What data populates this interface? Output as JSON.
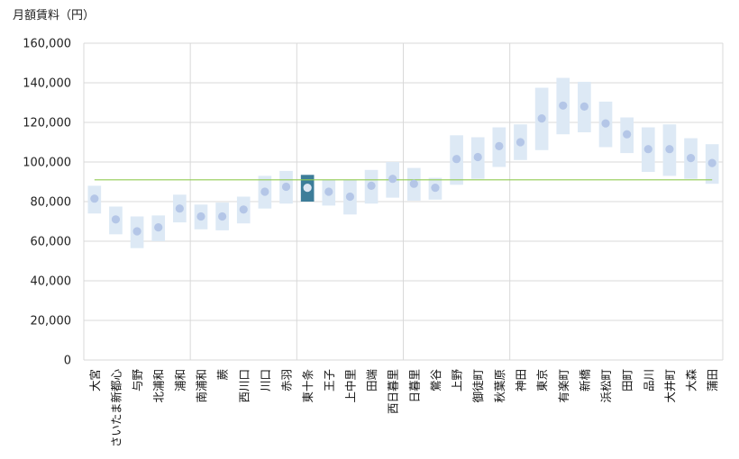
{
  "chart_data": {
    "type": "range-dot",
    "ylabel": "月額賃料（円）",
    "ylim": [
      0,
      160000
    ],
    "yticks": [
      "0",
      "20,000",
      "40,000",
      "60,000",
      "80,000",
      "100,000",
      "120,000",
      "140,000",
      "160,000"
    ],
    "reference_value": 91000,
    "highlight": "東十条",
    "colors": {
      "range": "#dde9f5",
      "dot": "#b4c6e7",
      "highlight_range": "#3d7d99",
      "highlight_dot": "#dde6f2",
      "reference": "#92cc52",
      "grid": "#d9d9d9"
    },
    "separators_after": [
      4,
      9,
      14,
      19
    ],
    "categories": [
      "大宮",
      "さいたま新都心",
      "与野",
      "北浦和",
      "浦和",
      "南浦和",
      "蕨",
      "西川口",
      "川口",
      "赤羽",
      "東十条",
      "王子",
      "上中里",
      "田端",
      "西日暮里",
      "日暮里",
      "鶯谷",
      "上野",
      "御徒町",
      "秋葉原",
      "神田",
      "東京",
      "有楽町",
      "新橋",
      "浜松町",
      "田町",
      "品川",
      "大井町",
      "大森",
      "蒲田"
    ],
    "low": [
      74000,
      63500,
      56500,
      60000,
      69500,
      66000,
      65500,
      69000,
      76500,
      79000,
      80000,
      78000,
      73500,
      79000,
      82000,
      80500,
      81000,
      88500,
      91500,
      97500,
      101000,
      106000,
      114000,
      115000,
      107500,
      104500,
      95000,
      93000,
      91500,
      89000
    ],
    "high": [
      88000,
      77500,
      72500,
      73000,
      83500,
      78500,
      79500,
      82500,
      93000,
      95500,
      93500,
      91000,
      91000,
      96000,
      100000,
      97000,
      92000,
      113500,
      112500,
      117500,
      119000,
      137500,
      142500,
      140500,
      130500,
      122500,
      117500,
      119000,
      112000,
      109000
    ],
    "mid": [
      81500,
      71000,
      65000,
      67000,
      76500,
      72500,
      72500,
      76000,
      85000,
      87500,
      87000,
      85000,
      82500,
      88000,
      91500,
      89000,
      87000,
      101500,
      102500,
      108000,
      110000,
      122000,
      128500,
      128000,
      119500,
      114000,
      106500,
      106500,
      102000,
      99500
    ]
  }
}
